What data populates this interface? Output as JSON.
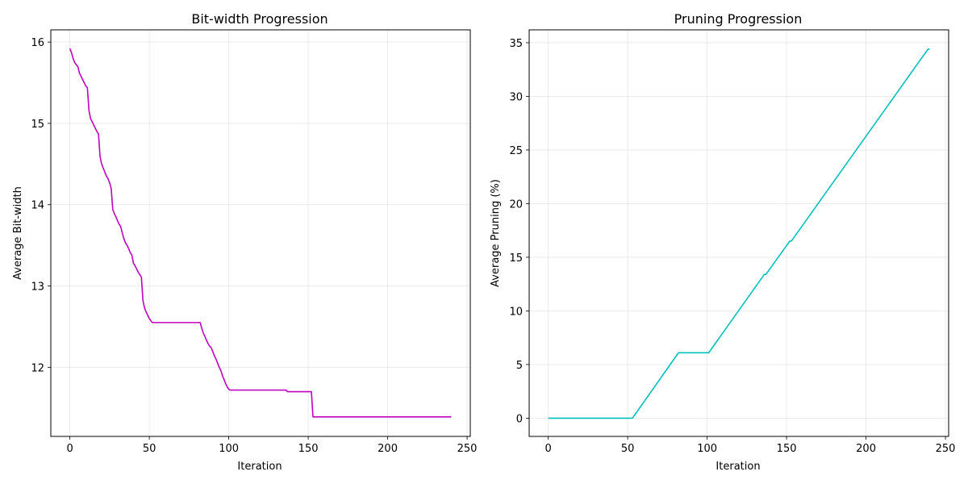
{
  "chart_data": [
    {
      "type": "line",
      "title": "Bit-width Progression",
      "xlabel": "Iteration",
      "ylabel": "Average Bit-width",
      "xlim": [
        -12,
        252
      ],
      "ylim": [
        11.15,
        16.15
      ],
      "xticks": [
        0,
        50,
        100,
        150,
        200,
        250
      ],
      "yticks": [
        12,
        13,
        14,
        15,
        16
      ],
      "grid": true,
      "color": "#bf00bf",
      "x": [
        0,
        1,
        2,
        3,
        4,
        5,
        6,
        7,
        8,
        9,
        10,
        11,
        12,
        13,
        14,
        15,
        16,
        17,
        18,
        19,
        20,
        21,
        22,
        23,
        24,
        25,
        26,
        27,
        28,
        29,
        30,
        31,
        32,
        33,
        34,
        35,
        36,
        37,
        38,
        39,
        40,
        41,
        42,
        43,
        44,
        45,
        46,
        47,
        48,
        49,
        50,
        51,
        52,
        53,
        60,
        70,
        82,
        83,
        84,
        85,
        86,
        87,
        88,
        89,
        90,
        91,
        92,
        93,
        94,
        95,
        96,
        97,
        98,
        99,
        100,
        101,
        110,
        120,
        130,
        136,
        137,
        145,
        152,
        153,
        170,
        200,
        240
      ],
      "y": [
        15.92,
        15.87,
        15.8,
        15.75,
        15.72,
        15.7,
        15.62,
        15.58,
        15.54,
        15.5,
        15.46,
        15.44,
        15.16,
        15.06,
        15.02,
        14.98,
        14.94,
        14.9,
        14.87,
        14.59,
        14.5,
        14.45,
        14.4,
        14.35,
        14.32,
        14.27,
        14.2,
        13.94,
        13.89,
        13.85,
        13.8,
        13.76,
        13.73,
        13.65,
        13.58,
        13.53,
        13.5,
        13.46,
        13.41,
        13.38,
        13.28,
        13.25,
        13.21,
        13.17,
        13.14,
        13.11,
        12.82,
        12.73,
        12.68,
        12.64,
        12.6,
        12.57,
        12.55,
        12.55,
        12.55,
        12.55,
        12.55,
        12.48,
        12.42,
        12.38,
        12.33,
        12.29,
        12.26,
        12.24,
        12.19,
        12.14,
        12.1,
        12.05,
        12.0,
        11.96,
        11.9,
        11.85,
        11.8,
        11.76,
        11.73,
        11.72,
        11.72,
        11.72,
        11.72,
        11.72,
        11.7,
        11.7,
        11.7,
        11.39,
        11.39,
        11.39,
        11.39
      ]
    },
    {
      "type": "line",
      "title": "Pruning Progression",
      "xlabel": "Iteration",
      "ylabel": "Average Pruning (%)",
      "xlim": [
        -12,
        252
      ],
      "ylim": [
        -1.7,
        36.2
      ],
      "xticks": [
        0,
        50,
        100,
        150,
        200,
        250
      ],
      "yticks": [
        0,
        5,
        10,
        15,
        20,
        25,
        30,
        35
      ],
      "grid": true,
      "color": "#00bfbf",
      "x": [
        0,
        53,
        82,
        101,
        136,
        137,
        152,
        153,
        239,
        240
      ],
      "y": [
        0,
        0,
        6.1,
        6.1,
        13.4,
        13.4,
        16.5,
        16.5,
        34.4,
        34.4
      ]
    }
  ]
}
